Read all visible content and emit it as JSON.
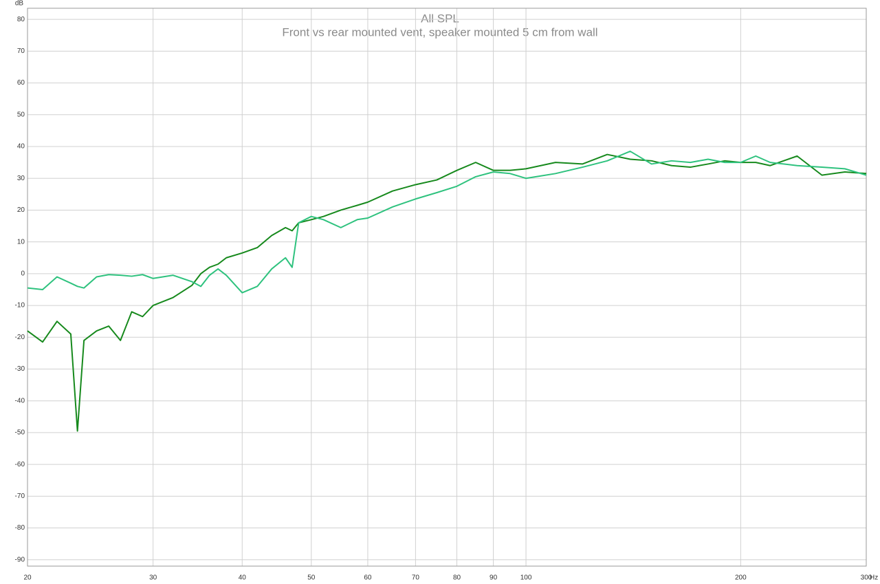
{
  "chart_data": {
    "type": "line",
    "title": "All SPL",
    "subtitle": "Front vs rear mounted vent, speaker mounted 5 cm from wall",
    "xlabel": "Hz",
    "ylabel": "dB",
    "xscale": "log",
    "grid": true,
    "x": [
      20,
      21,
      22,
      23,
      23.5,
      24,
      25,
      26,
      27,
      28,
      29,
      30,
      32,
      34,
      35,
      36,
      37,
      38,
      40,
      42,
      44,
      46,
      47,
      48,
      50,
      52,
      55,
      58,
      60,
      65,
      70,
      75,
      80,
      85,
      90,
      95,
      100,
      110,
      120,
      130,
      140,
      150,
      160,
      170,
      180,
      190,
      200,
      210,
      220,
      240,
      260,
      280,
      300
    ],
    "series": [
      {
        "color": "#16891c",
        "values": [
          -18,
          -21.5,
          -15,
          -19,
          -49.5,
          -21,
          -18,
          -16.5,
          -21,
          -12,
          -13.5,
          -10,
          -7.5,
          -3.7,
          0,
          2,
          3,
          5,
          6.5,
          8.2,
          12,
          14.5,
          13.5,
          16,
          17,
          18,
          20,
          21.5,
          22.5,
          26,
          28,
          29.5,
          32.5,
          35,
          32.5,
          32.5,
          33,
          35,
          34.5,
          37.5,
          36,
          35.5,
          34,
          33.5,
          34.5,
          35.5,
          35,
          35,
          34,
          37,
          31,
          32,
          31.5
        ]
      },
      {
        "color": "#2ec27e",
        "values": [
          -4.5,
          -5,
          -1,
          -3,
          -4,
          -4.5,
          -1,
          -0.3,
          -0.5,
          -0.8,
          -0.3,
          -1.5,
          -0.5,
          -2.5,
          -4,
          -0.5,
          1.5,
          -0.5,
          -6,
          -4,
          1.5,
          5,
          2,
          16,
          18,
          17,
          14.5,
          17,
          17.5,
          21,
          23.5,
          25.5,
          27.5,
          30.5,
          32,
          31.5,
          30,
          31.5,
          33.5,
          35.5,
          38.5,
          34.5,
          35.5,
          35,
          36,
          35,
          35,
          37,
          35,
          34,
          33.5,
          33,
          31
        ]
      }
    ],
    "xlim": [
      20,
      300
    ],
    "ylim": [
      -92,
      83.5
    ],
    "xticks": [
      20,
      30,
      40,
      50,
      60,
      70,
      80,
      90,
      100,
      200,
      300
    ],
    "yticks": [
      80,
      70,
      60,
      50,
      40,
      30,
      20,
      10,
      0,
      -10,
      -20,
      -30,
      -40,
      -50,
      -60,
      -70,
      -80,
      -90
    ]
  }
}
